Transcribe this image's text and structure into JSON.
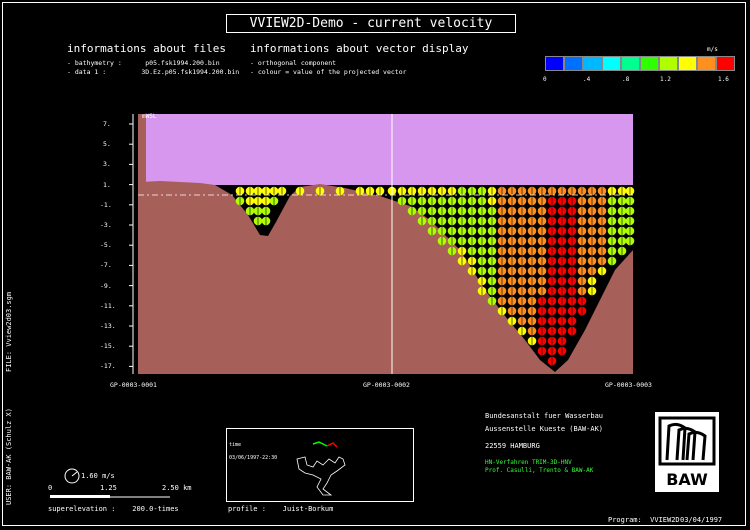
{
  "title": "VVIEW2D-Demo  -  current velocity",
  "files": {
    "heading": "informations about files",
    "line1": "- bathymetry :      p05.fsk1994.200.bin",
    "line2": "- data 1 :         3D.Ez.p05.fsk1994.200.bin"
  },
  "vectors": {
    "heading": "informations about vector display",
    "line1": "- orthogonal component",
    "line2": "- colour = value of the projected vector"
  },
  "colorbar": {
    "unit": "m/s",
    "colors": [
      "#0000ff",
      "#0070ff",
      "#00b8ff",
      "#00ffff",
      "#00ff90",
      "#30ff00",
      "#b0ff00",
      "#ffff00",
      "#ff9020",
      "#ff0000"
    ],
    "labels": [
      "0",
      ".4",
      ".8",
      "1.2",
      "1.6"
    ]
  },
  "plot": {
    "ylabel": "mWSL",
    "yticks": [
      "7.",
      "5.",
      "3.",
      "1.",
      "-1.",
      "-3.",
      "-5.",
      "-7.",
      "-9.",
      "-11.",
      "-13.",
      "-15.",
      "-17."
    ],
    "xlabels": [
      "GP-0003-0001",
      "GP-0003-0002",
      "GP-0003-0003"
    ],
    "colors": {
      "air": "#d797ef",
      "bed": "#a75f5a"
    }
  },
  "legend": {
    "speed": "1.60 m/s",
    "scale0": "0",
    "scale1": "1.25",
    "scale2": "2.50 km",
    "superelevation": "superelevation :    200.0-times",
    "profile": "profile :    Juist-Borkum"
  },
  "inset": {
    "label1": "time",
    "label2": "03/06/1997-22:30"
  },
  "org": {
    "line1": "Bundesanstalt fuer Wasserbau",
    "line2": "Aussenstelle Kueste (BAW-AK)",
    "line3": "22559 HAMBURG",
    "line4": "HN-Verfahren TRIM-3D-HNV",
    "line5": "Prof. Casulli, Trento & BAW-AK",
    "logo": "BAW"
  },
  "side": {
    "file": "FILE: Vview2d03.sgm",
    "user": "USER: BAW-AK (Schulz X)"
  },
  "footer": {
    "program": "Program:  VVIEW2D",
    "date": "03/04/1997"
  }
}
